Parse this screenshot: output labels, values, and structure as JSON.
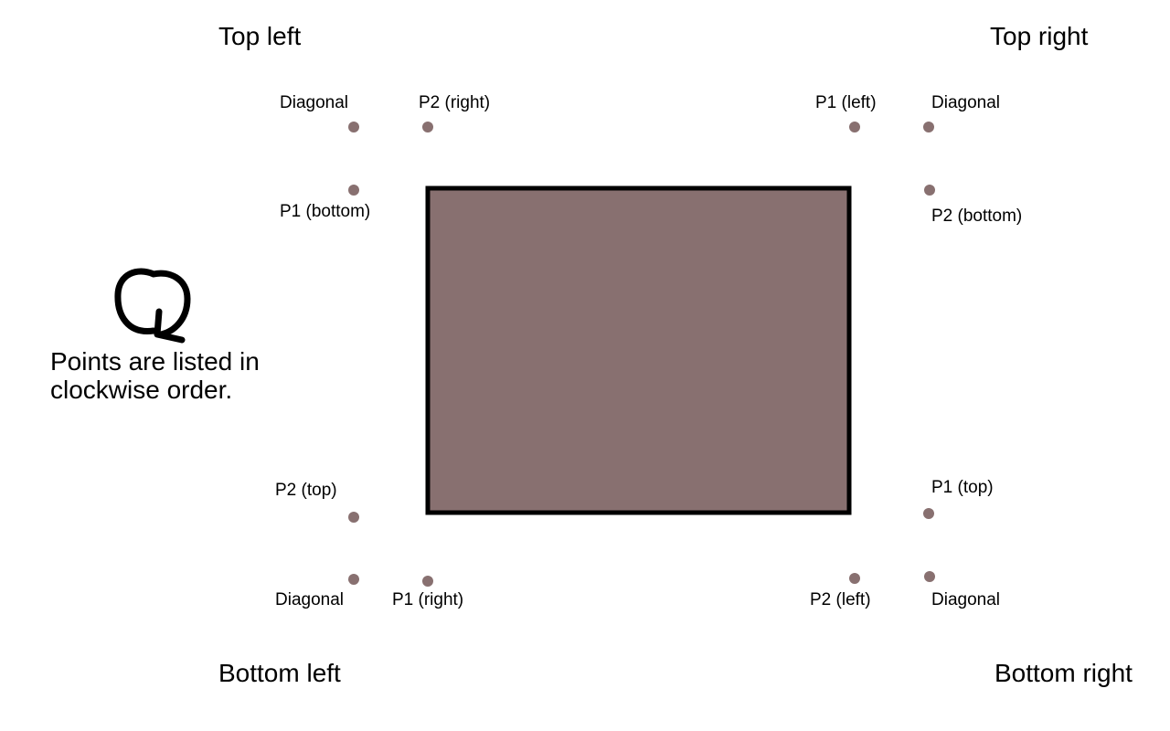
{
  "colors": {
    "rect_fill": "#887070",
    "rect_stroke": "#000000",
    "point": "#887070",
    "background": "#ffffff"
  },
  "corners": {
    "top_left": {
      "title": "Top left",
      "labels": {
        "diagonal": "Diagonal",
        "p2": "P2 (right)",
        "p1": "P1 (bottom)"
      }
    },
    "top_right": {
      "title": "Top right",
      "labels": {
        "p1": "P1 (left)",
        "diagonal": "Diagonal",
        "p2": "P2 (bottom)"
      }
    },
    "bottom_left": {
      "title": "Bottom left",
      "labels": {
        "p2": "P2 (top)",
        "diagonal": "Diagonal",
        "p1": "P1 (right)"
      }
    },
    "bottom_right": {
      "title": "Bottom right",
      "labels": {
        "p1": "P1 (top)",
        "p2": "P2 (left)",
        "diagonal": "Diagonal"
      }
    }
  },
  "note": {
    "line1": "Points are listed in",
    "line2": "clockwise order.",
    "icon": "clockwise-arrow-icon"
  }
}
